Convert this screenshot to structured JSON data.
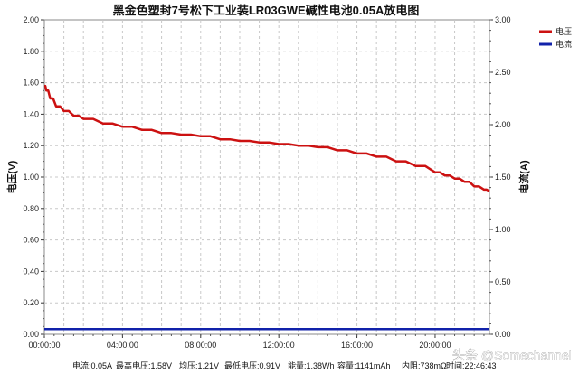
{
  "chart_data": {
    "type": "line",
    "title": "黑金色塑封7号松下工业装LR03GWE碱性电池0.05A放电图",
    "ylabel_left": "电压(V)",
    "ylabel_right": "电流(A)",
    "x_ticks": [
      "00:00:00",
      "04:00:00",
      "08:00:00",
      "12:00:00",
      "16:00:00",
      "20:00:00"
    ],
    "x_tick_hours": [
      0,
      4,
      8,
      12,
      16,
      20
    ],
    "xlim_hours": [
      0,
      22.78
    ],
    "y_left_ticks": [
      "0.00",
      "0.20",
      "0.40",
      "0.60",
      "0.80",
      "1.00",
      "1.20",
      "1.40",
      "1.60",
      "1.80",
      "2.00"
    ],
    "ylim_left": [
      0,
      2.0
    ],
    "y_right_ticks": [
      "0.00",
      "0.50",
      "1.00",
      "1.50",
      "2.00",
      "2.50",
      "3.00"
    ],
    "ylim_right": [
      0,
      3.0
    ],
    "grid": true,
    "legend_position": "top-right",
    "series": [
      {
        "name": "电压",
        "axis": "left",
        "color": "#cc1111",
        "x": [
          0,
          0.1,
          0.3,
          0.6,
          1,
          1.5,
          2,
          3,
          4,
          5,
          6,
          7,
          8,
          9,
          10,
          11,
          12,
          13,
          14,
          15,
          16,
          17,
          18,
          19,
          20,
          20.5,
          21,
          21.5,
          22,
          22.5,
          22.78
        ],
        "y": [
          1.58,
          1.55,
          1.5,
          1.45,
          1.42,
          1.39,
          1.37,
          1.34,
          1.32,
          1.3,
          1.28,
          1.27,
          1.26,
          1.24,
          1.23,
          1.22,
          1.21,
          1.2,
          1.19,
          1.17,
          1.15,
          1.13,
          1.1,
          1.07,
          1.03,
          1.01,
          0.99,
          0.97,
          0.94,
          0.92,
          0.91
        ]
      },
      {
        "name": "电流",
        "axis": "right",
        "color": "#1122aa",
        "x": [
          0,
          22.78
        ],
        "y": [
          0.05,
          0.05
        ]
      }
    ]
  },
  "footer": {
    "current": "电流:0.05A",
    "max_voltage": "最高电压:1.58V",
    "avg_voltage": "均压:1.21V",
    "min_voltage": "最低电压:0.91V",
    "energy": "能量:1.38Wh",
    "capacity": "容量:1141mAh",
    "resistance": "内阻:738mΩ",
    "duration": "时间:22:46:43"
  },
  "watermark": "头条 @Somechannel"
}
